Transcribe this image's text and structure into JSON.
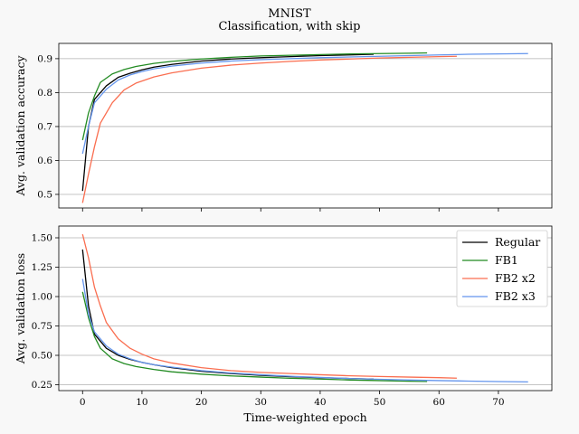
{
  "title": "MNIST",
  "subtitle": "Classification, with skip",
  "colors": {
    "Regular": "#000000",
    "FB1": "#228b22",
    "FB2 x2": "#fa6e50",
    "FB2 x3": "#6495ed"
  },
  "chart_data": [
    {
      "type": "line",
      "ylabel": "Avg. validation accuracy",
      "xlabel": "",
      "xlim": [
        -4,
        79
      ],
      "ylim": [
        0.46,
        0.945
      ],
      "yticks": [
        0.5,
        0.6,
        0.7,
        0.8,
        0.9
      ],
      "ytick_labels": [
        "0.5",
        "0.6",
        "0.7",
        "0.8",
        "0.9"
      ],
      "xticks": [
        0,
        10,
        20,
        30,
        40,
        50,
        60,
        70
      ],
      "show_xtick_labels": false,
      "grid": "horizontal",
      "series": [
        {
          "name": "Regular",
          "x": [
            0,
            1,
            2,
            4,
            6,
            8,
            10,
            12,
            15,
            20,
            25,
            30,
            35,
            40,
            45,
            49
          ],
          "y": [
            0.51,
            0.7,
            0.78,
            0.82,
            0.845,
            0.857,
            0.867,
            0.875,
            0.883,
            0.893,
            0.899,
            0.903,
            0.906,
            0.909,
            0.911,
            0.913
          ]
        },
        {
          "name": "FB1",
          "x": [
            0,
            1,
            2,
            3,
            5,
            7,
            9,
            12,
            15,
            20,
            25,
            30,
            35,
            40,
            45,
            50,
            55,
            58
          ],
          "y": [
            0.66,
            0.74,
            0.79,
            0.83,
            0.855,
            0.868,
            0.877,
            0.886,
            0.892,
            0.899,
            0.904,
            0.908,
            0.91,
            0.912,
            0.914,
            0.915,
            0.916,
            0.917
          ]
        },
        {
          "name": "FB2 x2",
          "x": [
            0,
            1,
            2,
            3,
            5,
            7,
            9,
            12,
            15,
            20,
            25,
            30,
            35,
            40,
            45,
            50,
            55,
            60,
            63
          ],
          "y": [
            0.475,
            0.56,
            0.64,
            0.71,
            0.77,
            0.808,
            0.828,
            0.846,
            0.858,
            0.872,
            0.881,
            0.887,
            0.892,
            0.896,
            0.899,
            0.902,
            0.904,
            0.906,
            0.907
          ]
        },
        {
          "name": "FB2 x3",
          "x": [
            0,
            1,
            2,
            4,
            6,
            8,
            10,
            12,
            15,
            20,
            25,
            30,
            35,
            40,
            45,
            50,
            55,
            60,
            65,
            70,
            75
          ],
          "y": [
            0.62,
            0.7,
            0.77,
            0.81,
            0.837,
            0.852,
            0.862,
            0.87,
            0.878,
            0.887,
            0.893,
            0.897,
            0.9,
            0.903,
            0.905,
            0.907,
            0.909,
            0.911,
            0.913,
            0.914,
            0.915
          ]
        }
      ]
    },
    {
      "type": "line",
      "ylabel": "Avg. validation loss",
      "xlabel": "Time-weighted epoch",
      "xlim": [
        -4,
        79
      ],
      "ylim": [
        0.2,
        1.6
      ],
      "yticks": [
        0.25,
        0.5,
        0.75,
        1.0,
        1.25,
        1.5
      ],
      "ytick_labels": [
        "0.25",
        "0.50",
        "0.75",
        "1.00",
        "1.25",
        "1.50"
      ],
      "xticks": [
        0,
        10,
        20,
        30,
        40,
        50,
        60,
        70
      ],
      "xtick_labels": [
        "0",
        "10",
        "20",
        "30",
        "40",
        "50",
        "60",
        "70"
      ],
      "show_xtick_labels": true,
      "grid": "horizontal",
      "legend": "top-right",
      "series": [
        {
          "name": "Regular",
          "x": [
            0,
            1,
            2,
            4,
            6,
            8,
            10,
            12,
            15,
            20,
            25,
            30,
            35,
            40,
            45,
            49
          ],
          "y": [
            1.4,
            0.92,
            0.68,
            0.56,
            0.5,
            0.465,
            0.44,
            0.42,
            0.395,
            0.365,
            0.345,
            0.33,
            0.318,
            0.31,
            0.303,
            0.298
          ]
        },
        {
          "name": "FB1",
          "x": [
            0,
            1,
            2,
            3,
            5,
            7,
            9,
            12,
            15,
            20,
            25,
            30,
            35,
            40,
            45,
            50,
            55,
            58
          ],
          "y": [
            1.04,
            0.82,
            0.66,
            0.56,
            0.47,
            0.43,
            0.405,
            0.38,
            0.36,
            0.34,
            0.325,
            0.315,
            0.305,
            0.298,
            0.29,
            0.285,
            0.28,
            0.278
          ]
        },
        {
          "name": "FB2 x2",
          "x": [
            0,
            1,
            2,
            3,
            4,
            6,
            8,
            10,
            12,
            15,
            20,
            25,
            30,
            35,
            40,
            45,
            50,
            55,
            60,
            63
          ],
          "y": [
            1.53,
            1.33,
            1.08,
            0.92,
            0.78,
            0.64,
            0.56,
            0.51,
            0.47,
            0.435,
            0.395,
            0.37,
            0.355,
            0.345,
            0.335,
            0.326,
            0.32,
            0.315,
            0.31,
            0.306
          ]
        },
        {
          "name": "FB2 x3",
          "x": [
            0,
            1,
            2,
            4,
            6,
            8,
            10,
            12,
            15,
            20,
            25,
            30,
            35,
            40,
            45,
            50,
            55,
            60,
            65,
            70,
            75
          ],
          "y": [
            1.15,
            0.85,
            0.7,
            0.58,
            0.51,
            0.47,
            0.44,
            0.42,
            0.4,
            0.37,
            0.35,
            0.335,
            0.322,
            0.312,
            0.303,
            0.296,
            0.29,
            0.285,
            0.281,
            0.277,
            0.274
          ]
        }
      ]
    }
  ]
}
